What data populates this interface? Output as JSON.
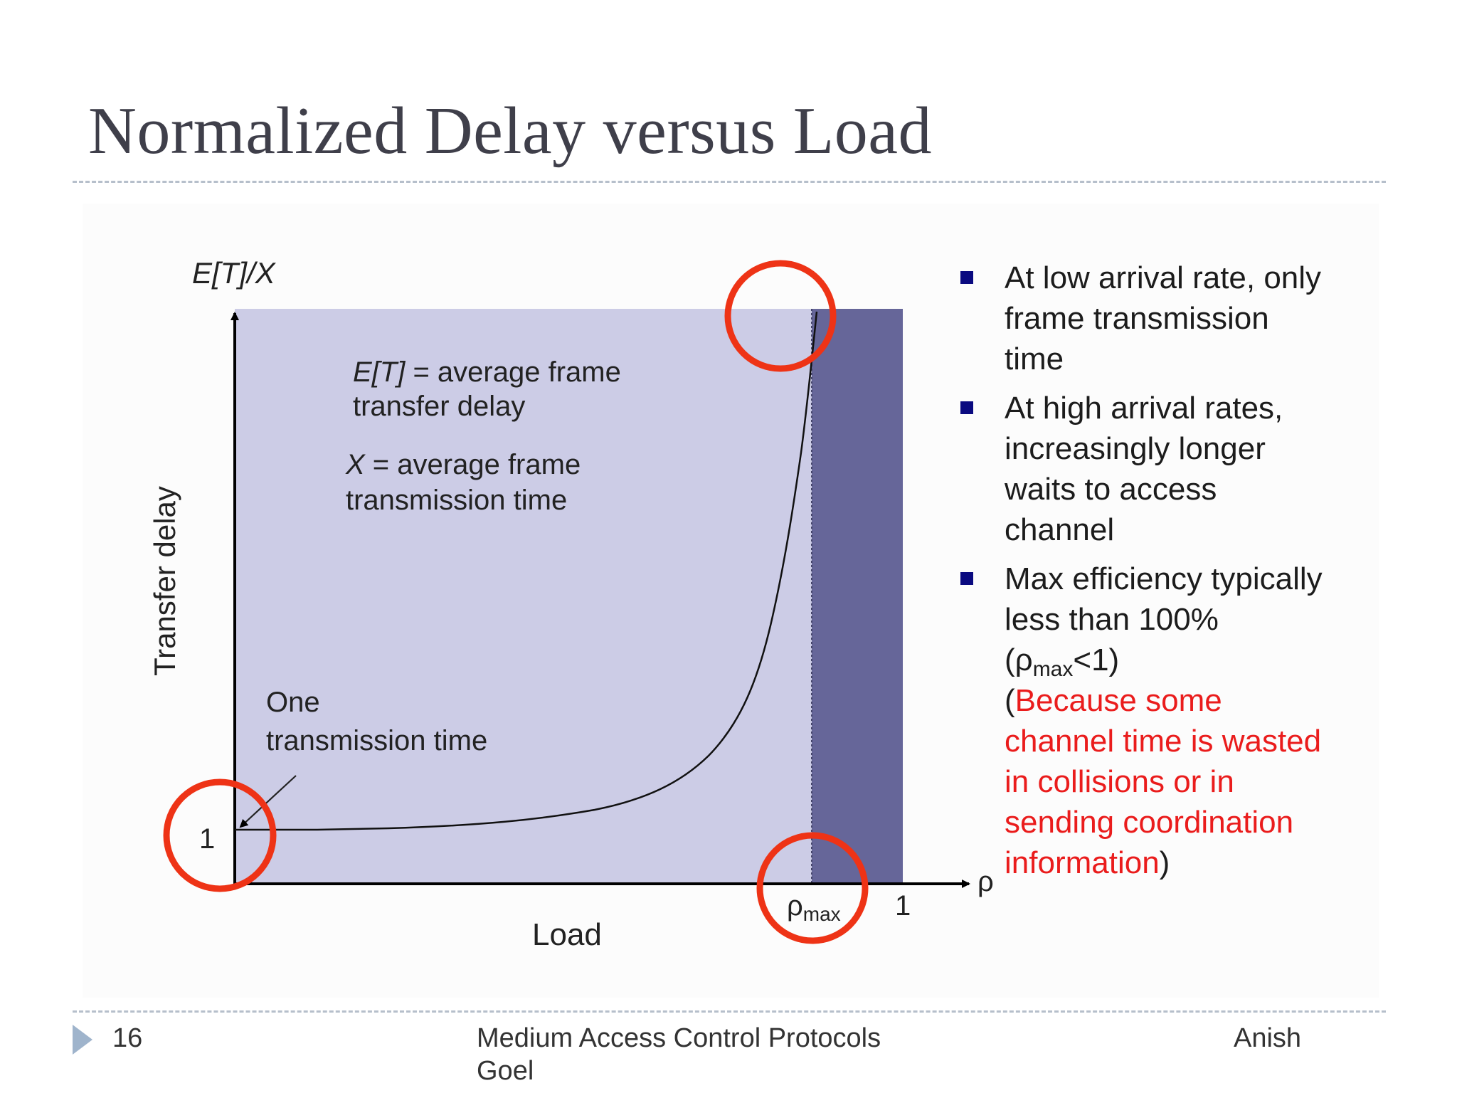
{
  "slide": {
    "title": "Normalized Delay versus Load"
  },
  "diagram": {
    "y_axis_label": "E[T]/X",
    "y_axis_title": "Transfer delay",
    "x_axis_label": "Load",
    "x_axis_symbol": "ρ",
    "y_tick_one": "1",
    "x_tick_one": "1",
    "rho_max_base": "ρ",
    "rho_max_sub": "max",
    "et_definition": {
      "var": "E[T]",
      "line1_rest": " = average frame",
      "line2": "transfer delay"
    },
    "x_definition": {
      "var": "X",
      "line1_rest": " = average frame",
      "line2": "transmission time"
    },
    "one_tx_label": {
      "line1": "One",
      "line2": "transmission time"
    },
    "colors": {
      "feasible_region": "#cccce6",
      "saturated_region": "#666699",
      "highlight_circle": "#ee3316",
      "curve": "#111111",
      "axis": "#000000",
      "bullet_square": "#0a0a80",
      "red_text": "#ea1c1c"
    }
  },
  "bullets": [
    {
      "text": "At low arrival rate, only frame transmission time"
    },
    {
      "text": "At high arrival rates, increasingly longer waits to access channel"
    },
    {
      "text_before": "Max efficiency typically less than 100% (",
      "symbol": "ρ",
      "symbol_sub": "max",
      "text_after": "<1)",
      "paren_open": "(",
      "red_text": "Because some channel time is wasted in collisions or in sending coordination information",
      "paren_close": ")"
    }
  ],
  "footer": {
    "page_number": "16",
    "course": "Medium Access Control Protocols Goel",
    "author": "Anish"
  }
}
